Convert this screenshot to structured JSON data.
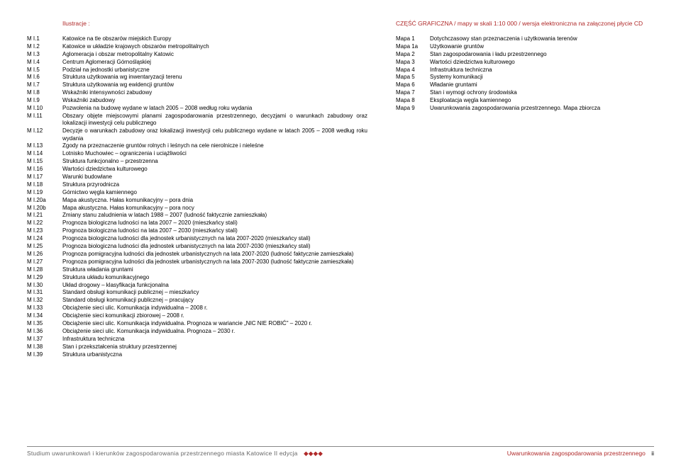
{
  "left": {
    "title": "Ilustracje :",
    "items": [
      {
        "code": "M I.1",
        "desc": "Katowice na tle obszarów miejskich Europy"
      },
      {
        "code": "M I.2",
        "desc": "Katowice w układzie krajowych obszarów metropolitalnych"
      },
      {
        "code": "M I.3",
        "desc": "Aglomeracja i obszar metropolitalny Katowic"
      },
      {
        "code": "M I.4",
        "desc": "Centrum Aglomeracji Górnośląskiej"
      },
      {
        "code": "M I.5",
        "desc": "Podział na jednostki urbanistyczne"
      },
      {
        "code": "M I.6",
        "desc": "Struktura użytkowania wg inwentaryzacji terenu"
      },
      {
        "code": "M I.7",
        "desc": "Struktura użytkowania wg ewidencji gruntów"
      },
      {
        "code": "M I.8",
        "desc": "Wskaźniki intensywności zabudowy"
      },
      {
        "code": "M I.9",
        "desc": "Wskaźniki zabudowy"
      },
      {
        "code": "M I.10",
        "desc": "Pozwolenia na budowę wydane w latach 2005 – 2008 według roku wydania"
      },
      {
        "code": "M I.11",
        "desc": "Obszary objęte miejscowymi planami zagospodarowania przestrzennego, decyzjami o warunkach zabudowy oraz lokalizacji inwestycji celu publicznego"
      },
      {
        "code": "M I.12",
        "desc": "Decyzje o warunkach zabudowy oraz lokalizacji inwestycji celu publicznego wydane w latach 2005 – 2008 według roku wydania"
      },
      {
        "code": "M I.13",
        "desc": "Zgody na przeznaczenie gruntów rolnych i leśnych na cele nierolnicze i nieleśne"
      },
      {
        "code": "M I.14",
        "desc": "Lotnisko Muchowiec – ograniczenia i uciążliwości"
      },
      {
        "code": "M I.15",
        "desc": "Struktura funkcjonalno – przestrzenna"
      },
      {
        "code": "M I.16",
        "desc": "Wartości dziedzictwa kulturowego"
      },
      {
        "code": "M I.17",
        "desc": "Warunki budowlane"
      },
      {
        "code": "M I.18",
        "desc": "Struktura przyrodnicza"
      },
      {
        "code": "M I.19",
        "desc": "Górnictwo węgla kamiennego"
      },
      {
        "code": "M I.20a",
        "desc": "Mapa akustyczna. Hałas komunikacyjny – pora dnia"
      },
      {
        "code": "M I.20b",
        "desc": "Mapa akustyczna. Hałas komunikacyjny – pora nocy"
      },
      {
        "code": "M I.21",
        "desc": "Zmiany stanu zaludnienia w latach 1988 – 2007 (ludność faktycznie zamieszkała)"
      },
      {
        "code": "M I.22",
        "desc": "Prognoza biologiczna ludności na lata 2007 – 2020 (mieszkańcy stali)"
      },
      {
        "code": "M I.23",
        "desc": "Prognoza biologiczna ludności na lata 2007 – 2030 (mieszkańcy stali)"
      },
      {
        "code": "M I.24",
        "desc": "Prognoza biologiczna ludności dla jednostek urbanistycznych na lata 2007-2020 (mieszkańcy stali)"
      },
      {
        "code": "M I.25",
        "desc": "Prognoza biologiczna ludności dla jednostek urbanistycznych na lata 2007-2030 (mieszkańcy stali)"
      },
      {
        "code": "M I.26",
        "desc": "Prognoza pomigracyjna ludności dla jednostek urbanistycznych na lata 2007-2020 (ludność faktycznie zamieszkała)"
      },
      {
        "code": "M I.27",
        "desc": "Prognoza pomigracyjna ludności dla jednostek urbanistycznych na lata 2007-2030 (ludność faktycznie zamieszkała)"
      },
      {
        "code": "M I.28",
        "desc": "Struktura władania gruntami"
      },
      {
        "code": "M I.29",
        "desc": "Struktura układu komunikacyjnego"
      },
      {
        "code": "M I.30",
        "desc": "Układ drogowy – klasyfikacja funkcjonalna"
      },
      {
        "code": "M I.31",
        "desc": "Standard obsługi komunikacji publicznej – mieszkańcy"
      },
      {
        "code": "M I.32",
        "desc": "Standard obsługi komunikacji publicznej – pracujący"
      },
      {
        "code": "M I.33",
        "desc": "Obciążenie sieci ulic. Komunikacja indywidualna – 2008 r."
      },
      {
        "code": "M I.34",
        "desc": "Obciążenie sieci komunikacji zbiorowej – 2008 r."
      },
      {
        "code": "M I.35",
        "desc": "Obciążenie sieci ulic. Komunikacja indywidualna. Prognoza w wariancie „NIC NIE ROBIĆ\" – 2020 r."
      },
      {
        "code": "M I.36",
        "desc": "Obciążenie sieci ulic. Komunikacja indywidualna. Prognoza – 2030 r."
      },
      {
        "code": "M I.37",
        "desc": "Infrastruktura techniczna"
      },
      {
        "code": "M I.38",
        "desc": "Stan i przekształcenia struktury przestrzennej"
      },
      {
        "code": "M I.39",
        "desc": "Struktura urbanistyczna"
      }
    ]
  },
  "right": {
    "title": "CZĘŚĆ GRAFICZNA / mapy w skali 1:10 000 / wersja elektroniczna na załączonej płycie CD",
    "items": [
      {
        "code": "Mapa 1",
        "desc": "Dotychczasowy stan przeznaczenia i użytkowania terenów"
      },
      {
        "code": "Mapa 1a",
        "desc": "Użytkowanie gruntów"
      },
      {
        "code": "Mapa 2",
        "desc": "Stan zagospodarowania i ładu przestrzennego"
      },
      {
        "code": "Mapa 3",
        "desc": "Wartości dziedzictwa kulturowego"
      },
      {
        "code": "Mapa 4",
        "desc": "Infrastruktura techniczna"
      },
      {
        "code": "Mapa 5",
        "desc": "Systemy komunikacji"
      },
      {
        "code": "Mapa 6",
        "desc": "Władanie gruntami"
      },
      {
        "code": "Mapa 7",
        "desc": "Stan i wymogi ochrony środowiska"
      },
      {
        "code": "Mapa 8",
        "desc": "Eksploatacja węgla kamiennego"
      },
      {
        "code": "Mapa 9",
        "desc": "Uwarunkowania zagospodarowania przestrzennego. Mapa zbiorcza"
      }
    ]
  },
  "footer": {
    "left": "Studium uwarunkowań i kierunków zagospodarowania przestrzennego miasta Katowice II edycja",
    "dots": "◆◆◆◆",
    "right": "Uwarunkowania zagospodarowania przestrzennego",
    "pgnum": "ii"
  }
}
